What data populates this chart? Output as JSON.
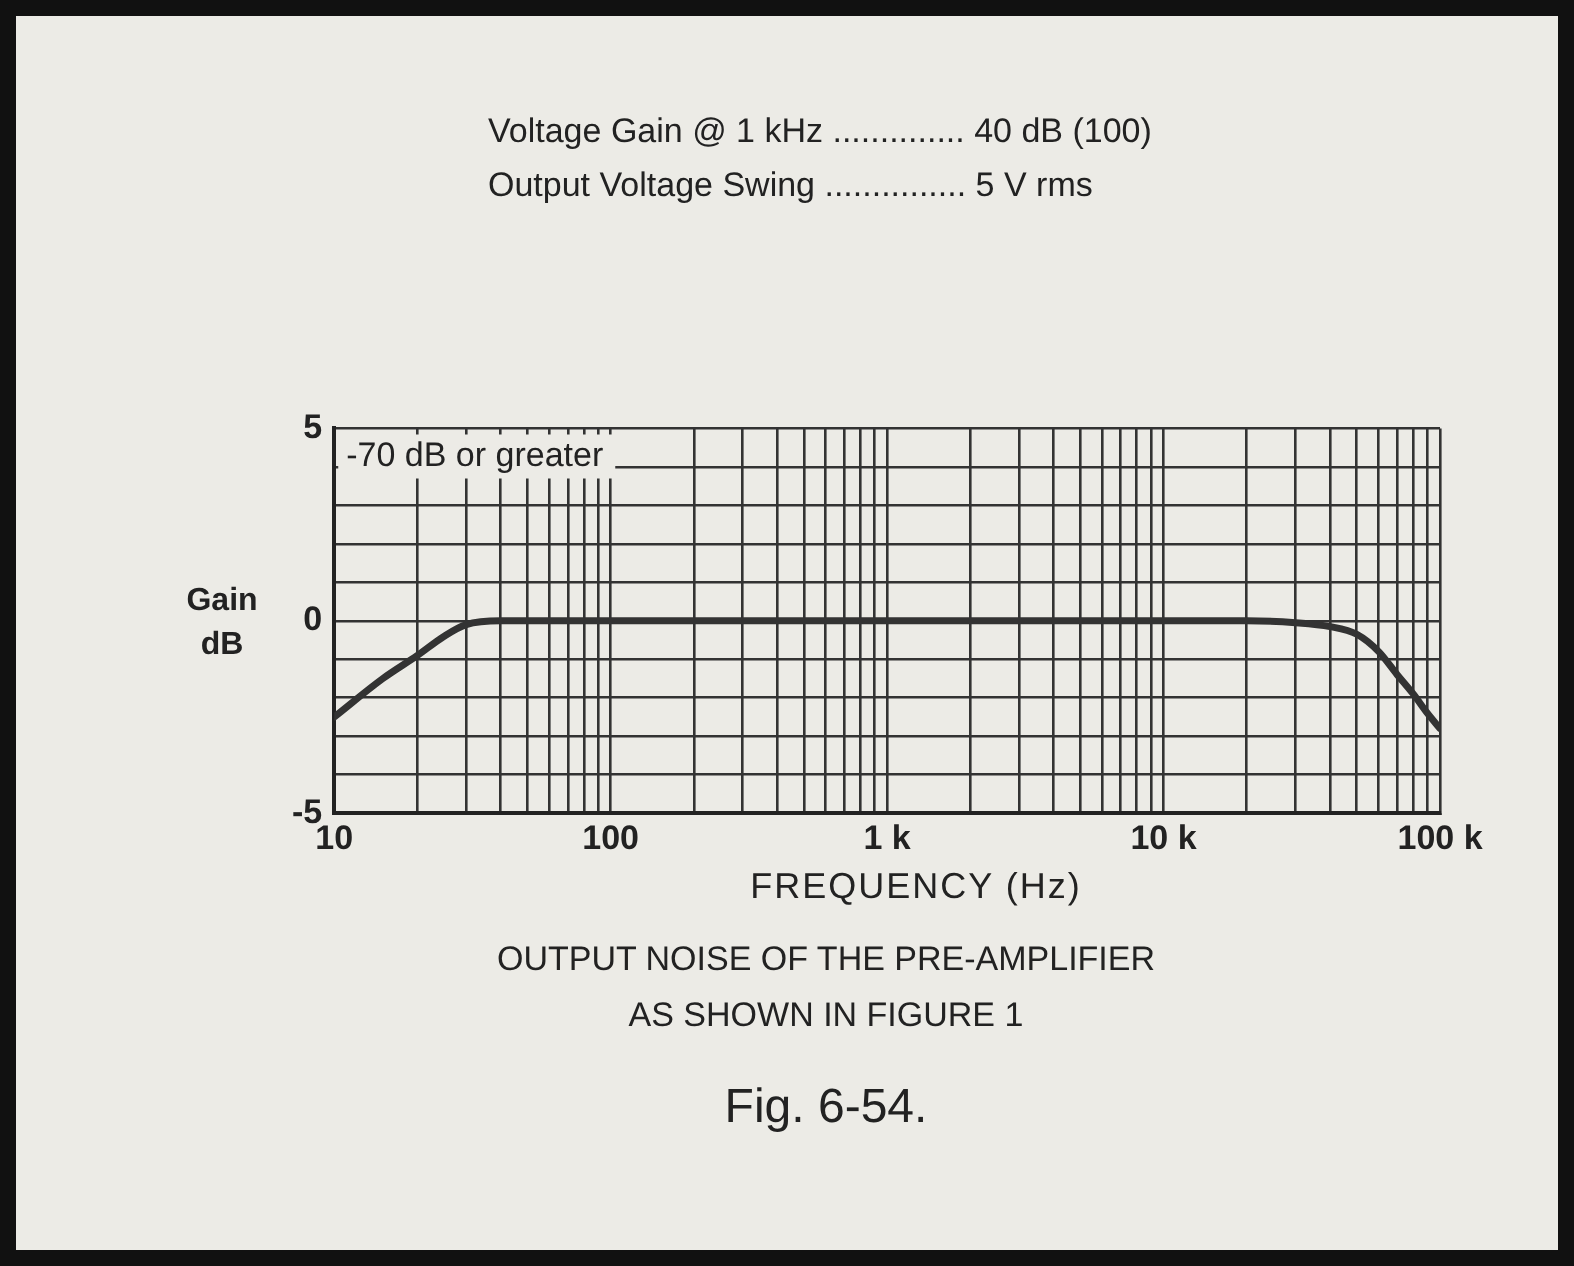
{
  "chart_data": {
    "type": "line",
    "title": "OUTPUT NOISE OF THE PRE-AMPLIFIER AS SHOWN IN FIGURE 1",
    "xlabel": "FREQUENCY (Hz)",
    "ylabel": "Gain dB",
    "annotations": [
      "Voltage Gain @ 1 kHz .............. 40 dB (100)",
      "Output Voltage Swing ............... 5 V rms",
      "-70 dB or greater",
      "Fig. 6-54."
    ],
    "x": [
      10,
      15,
      20,
      25,
      30,
      40,
      50,
      100,
      1000,
      10000,
      20000,
      30000,
      40000,
      50000,
      60000,
      70000,
      80000,
      90000,
      100000
    ],
    "series": [
      {
        "color": "#333333",
        "values": [
          -2.5,
          -1.5,
          -0.9,
          -0.4,
          -0.1,
          0,
          0,
          0,
          0,
          0,
          0,
          -0.05,
          -0.15,
          -0.35,
          -0.8,
          -1.4,
          -1.9,
          -2.4,
          -2.8
        ]
      }
    ],
    "log": "x",
    "xlim": [
      10,
      100000
    ],
    "xticks": [
      10,
      {
        "value": 20,
        "label": null
      },
      {
        "value": 30,
        "label": null
      },
      {
        "value": 40,
        "label": null
      },
      {
        "value": 50,
        "label": null
      },
      {
        "value": 60,
        "label": null
      },
      {
        "value": 70,
        "label": null
      },
      {
        "value": 80,
        "label": null
      },
      {
        "value": 90,
        "label": null
      },
      100,
      {
        "value": 200,
        "label": null
      },
      {
        "value": 300,
        "label": null
      },
      {
        "value": 400,
        "label": null
      },
      {
        "value": 500,
        "label": null
      },
      {
        "value": 600,
        "label": null
      },
      {
        "value": 700,
        "label": null
      },
      {
        "value": 800,
        "label": null
      },
      {
        "value": 900,
        "label": null
      },
      {
        "value": 1000,
        "label": "1 k"
      },
      {
        "value": 2000,
        "label": null
      },
      {
        "value": 3000,
        "label": null
      },
      {
        "value": 4000,
        "label": null
      },
      {
        "value": 5000,
        "label": null
      },
      {
        "value": 6000,
        "label": null
      },
      {
        "value": 7000,
        "label": null
      },
      {
        "value": 8000,
        "label": null
      },
      {
        "value": 9000,
        "label": null
      },
      {
        "value": 10000,
        "label": "10 k"
      },
      {
        "value": 20000,
        "label": null
      },
      {
        "value": 30000,
        "label": null
      },
      {
        "value": 40000,
        "label": null
      },
      {
        "value": 50000,
        "label": null
      },
      {
        "value": 60000,
        "label": null
      },
      {
        "value": 70000,
        "label": null
      },
      {
        "value": 80000,
        "label": null
      },
      {
        "value": 90000,
        "label": null
      },
      {
        "value": 100000,
        "label": "100 k"
      }
    ],
    "ylim": [
      -5,
      5
    ],
    "yticks": [
      -5,
      {
        "value": -4,
        "label": null
      },
      {
        "value": -3,
        "label": null
      },
      {
        "value": -2,
        "label": null
      },
      {
        "value": -1,
        "label": null
      },
      0,
      {
        "value": 1,
        "label": null
      },
      {
        "value": 2,
        "label": null
      },
      {
        "value": 3,
        "label": null
      },
      {
        "value": 4,
        "label": null
      },
      5
    ],
    "grid": true,
    "legend": false,
    "marker": "none",
    "line_style": "solid"
  }
}
